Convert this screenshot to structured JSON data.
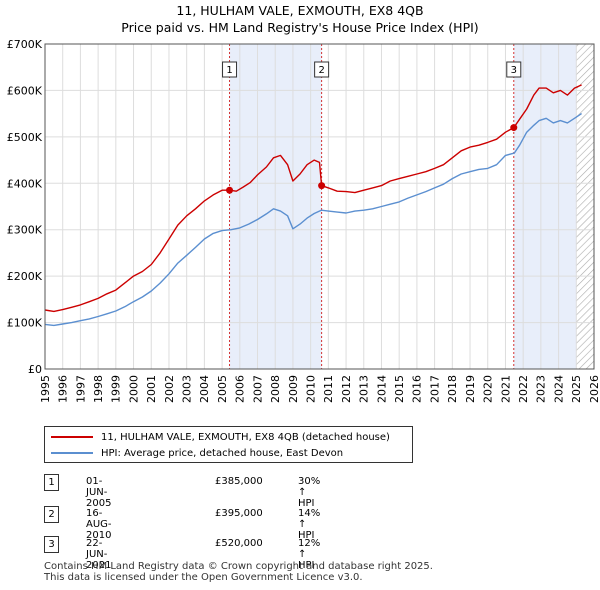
{
  "header": {
    "title": "11, HULHAM VALE, EXMOUTH, EX8 4QB",
    "subtitle": "Price paid vs. HM Land Registry's House Price Index (HPI)"
  },
  "colors": {
    "property": "#cc0000",
    "hpi": "#5b8fd0",
    "shade": "#e8eefa",
    "future_hatch": "#aaaaaa",
    "grid": "#dddddd"
  },
  "chart_data": {
    "type": "line",
    "title": "11, HULHAM VALE, EXMOUTH, EX8 4QB",
    "subtitle": "Price paid vs. HM Land Registry's House Price Index (HPI)",
    "xlim": [
      1995,
      2026
    ],
    "ylim": [
      0,
      700000
    ],
    "yticks": [
      0,
      100000,
      200000,
      300000,
      400000,
      500000,
      600000,
      700000
    ],
    "ytick_labels": [
      "£0",
      "£100K",
      "£200K",
      "£300K",
      "£400K",
      "£500K",
      "£600K",
      "£700K"
    ],
    "xticks": [
      1995,
      1996,
      1997,
      1998,
      1999,
      2000,
      2001,
      2002,
      2003,
      2004,
      2005,
      2006,
      2007,
      2008,
      2009,
      2010,
      2011,
      2012,
      2013,
      2014,
      2015,
      2016,
      2017,
      2018,
      2019,
      2020,
      2021,
      2022,
      2023,
      2024,
      2025,
      2026
    ],
    "xtick_labels": [
      "1995",
      "1996",
      "1997",
      "1998",
      "1999",
      "2000",
      "2001",
      "2002",
      "2003",
      "2004",
      "2005",
      "2006",
      "2007",
      "2008",
      "2009",
      "2010",
      "2011",
      "2012",
      "2013",
      "2014",
      "2015",
      "2016",
      "2017",
      "2018",
      "2019",
      "2020",
      "2021",
      "2022",
      "2023",
      "2024",
      "2025",
      "2026"
    ],
    "shaded_periods": [
      [
        2005.42,
        2010.62
      ],
      [
        2021.47,
        2025.0
      ]
    ],
    "future_from": 2025.0,
    "series": [
      {
        "name": "11, HULHAM VALE, EXMOUTH, EX8 4QB (detached house)",
        "color": "#cc0000",
        "x": [
          1995.0,
          1995.5,
          1996.0,
          1996.5,
          1997.0,
          1997.5,
          1998.0,
          1998.5,
          1999.0,
          1999.5,
          2000.0,
          2000.5,
          2001.0,
          2001.5,
          2002.0,
          2002.5,
          2003.0,
          2003.5,
          2004.0,
          2004.5,
          2005.0,
          2005.42,
          2005.8,
          2006.2,
          2006.6,
          2007.0,
          2007.5,
          2007.9,
          2008.3,
          2008.7,
          2009.0,
          2009.4,
          2009.8,
          2010.2,
          2010.5,
          2010.62,
          2011.0,
          2011.5,
          2012.0,
          2012.5,
          2013.0,
          2013.5,
          2014.0,
          2014.5,
          2015.0,
          2015.5,
          2016.0,
          2016.5,
          2017.0,
          2017.5,
          2018.0,
          2018.5,
          2019.0,
          2019.5,
          2020.0,
          2020.5,
          2021.0,
          2021.47,
          2021.8,
          2022.2,
          2022.6,
          2022.9,
          2023.3,
          2023.7,
          2024.1,
          2024.5,
          2024.9,
          2025.3
        ],
        "values": [
          127000,
          124000,
          128000,
          133000,
          138000,
          145000,
          152000,
          162000,
          170000,
          185000,
          200000,
          210000,
          225000,
          250000,
          280000,
          310000,
          330000,
          345000,
          362000,
          375000,
          385000,
          385000,
          383000,
          392000,
          402000,
          418000,
          435000,
          455000,
          460000,
          440000,
          405000,
          420000,
          440000,
          450000,
          445000,
          395000,
          390000,
          383000,
          382000,
          380000,
          385000,
          390000,
          395000,
          405000,
          410000,
          415000,
          420000,
          425000,
          432000,
          440000,
          455000,
          470000,
          478000,
          482000,
          488000,
          495000,
          510000,
          520000,
          538000,
          560000,
          590000,
          605000,
          605000,
          595000,
          600000,
          590000,
          605000,
          612000
        ]
      },
      {
        "name": "HPI: Average price, detached house, East Devon",
        "color": "#5b8fd0",
        "x": [
          1995.0,
          1995.5,
          1996.0,
          1996.5,
          1997.0,
          1997.5,
          1998.0,
          1998.5,
          1999.0,
          1999.5,
          2000.0,
          2000.5,
          2001.0,
          2001.5,
          2002.0,
          2002.5,
          2003.0,
          2003.5,
          2004.0,
          2004.5,
          2005.0,
          2005.5,
          2006.0,
          2006.5,
          2007.0,
          2007.5,
          2007.9,
          2008.3,
          2008.7,
          2009.0,
          2009.4,
          2009.8,
          2010.2,
          2010.6,
          2011.0,
          2011.5,
          2012.0,
          2012.5,
          2013.0,
          2013.5,
          2014.0,
          2014.5,
          2015.0,
          2015.5,
          2016.0,
          2016.5,
          2017.0,
          2017.5,
          2018.0,
          2018.5,
          2019.0,
          2019.5,
          2020.0,
          2020.5,
          2021.0,
          2021.5,
          2021.8,
          2022.2,
          2022.6,
          2022.9,
          2023.3,
          2023.7,
          2024.1,
          2024.5,
          2024.9,
          2025.3
        ],
        "values": [
          96000,
          94000,
          97000,
          100000,
          104000,
          108000,
          113000,
          119000,
          125000,
          134000,
          145000,
          155000,
          168000,
          185000,
          205000,
          228000,
          245000,
          262000,
          280000,
          292000,
          298000,
          300000,
          304000,
          312000,
          322000,
          334000,
          345000,
          340000,
          330000,
          302000,
          312000,
          325000,
          335000,
          342000,
          340000,
          338000,
          336000,
          340000,
          342000,
          345000,
          350000,
          355000,
          360000,
          368000,
          375000,
          382000,
          390000,
          398000,
          410000,
          420000,
          425000,
          430000,
          432000,
          440000,
          460000,
          465000,
          482000,
          510000,
          525000,
          535000,
          540000,
          530000,
          535000,
          530000,
          540000,
          550000
        ]
      }
    ],
    "sales": [
      {
        "label": "1",
        "x": 2005.42,
        "y": 385000
      },
      {
        "label": "2",
        "x": 2010.62,
        "y": 395000
      },
      {
        "label": "3",
        "x": 2021.47,
        "y": 520000
      }
    ]
  },
  "legend": {
    "property_label": "11, HULHAM VALE, EXMOUTH, EX8 4QB (detached house)",
    "hpi_label": "HPI: Average price, detached house, East Devon"
  },
  "transactions": [
    {
      "num": "1",
      "date": "01-JUN-2005",
      "price": "£385,000",
      "hpi": "30% ↑ HPI"
    },
    {
      "num": "2",
      "date": "16-AUG-2010",
      "price": "£395,000",
      "hpi": "14% ↑ HPI"
    },
    {
      "num": "3",
      "date": "22-JUN-2021",
      "price": "£520,000",
      "hpi": "12% ↑ HPI"
    }
  ],
  "footer": {
    "line1": "Contains HM Land Registry data © Crown copyright and database right 2025.",
    "line2": "This data is licensed under the Open Government Licence v3.0."
  }
}
